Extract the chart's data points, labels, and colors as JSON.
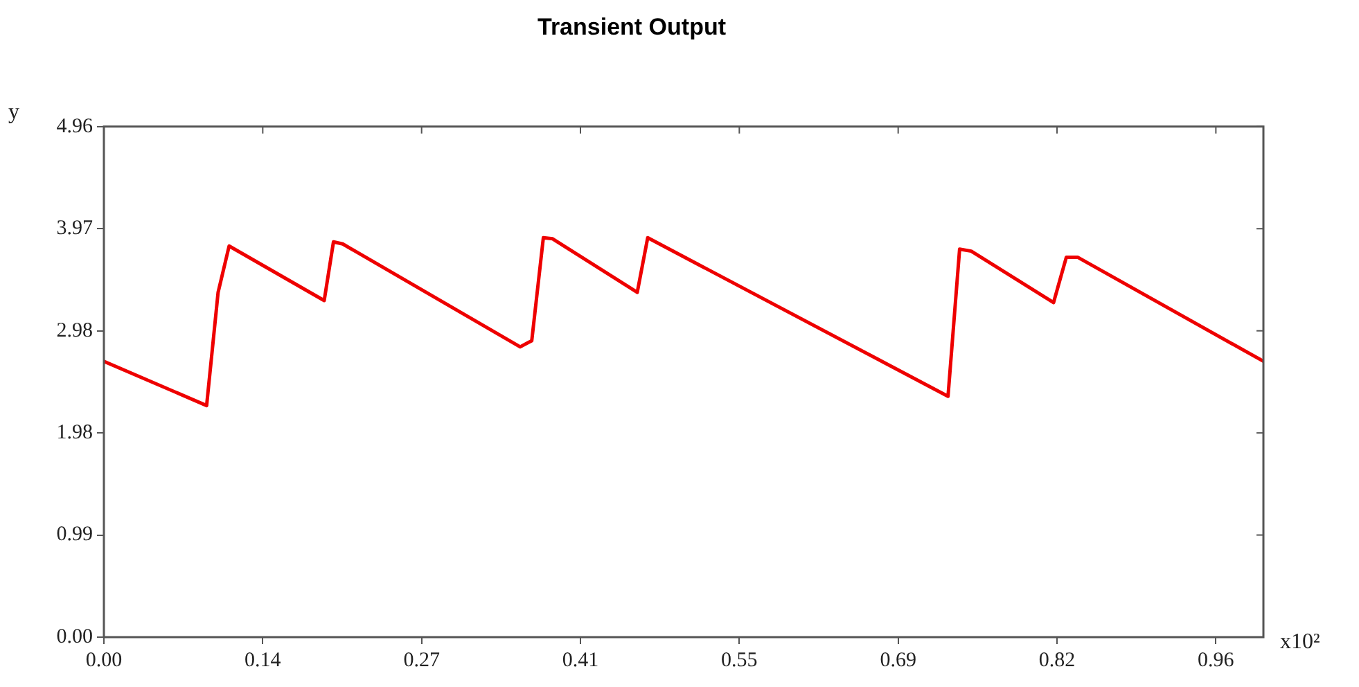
{
  "chart_data": {
    "type": "line",
    "title": "Transient Output",
    "xlabel": "x10²",
    "ylabel": "y",
    "x": [
      0,
      0.0886,
      0.0985,
      0.108,
      0.19,
      0.198,
      0.206,
      0.359,
      0.369,
      0.379,
      0.387,
      0.46,
      0.469,
      0.728,
      0.738,
      0.748,
      0.819,
      0.83,
      0.84,
      1.0
    ],
    "series": [
      {
        "color": "#ee0000",
        "values": [
          2.68,
          2.25,
          3.35,
          3.8,
          3.27,
          3.84,
          3.82,
          2.82,
          2.88,
          3.88,
          3.87,
          3.35,
          3.88,
          2.34,
          3.77,
          3.75,
          3.25,
          3.69,
          3.69,
          2.68
        ]
      }
    ],
    "xlim": [
      0,
      1.0
    ],
    "ylim": [
      0,
      4.96
    ],
    "xticks": [
      {
        "value": 0,
        "label": "0.00"
      },
      {
        "value": 0.137,
        "label": "0.14"
      },
      {
        "value": 0.274,
        "label": "0.27"
      },
      {
        "value": 0.411,
        "label": "0.41"
      },
      {
        "value": 0.548,
        "label": "0.55"
      },
      {
        "value": 0.685,
        "label": "0.69"
      },
      {
        "value": 0.822,
        "label": "0.82"
      },
      {
        "value": 0.959,
        "label": "0.96"
      }
    ],
    "yticks": [
      {
        "value": 0,
        "label": "0.00"
      },
      {
        "value": 0.992,
        "label": "0.99"
      },
      {
        "value": 1.984,
        "label": "1.98"
      },
      {
        "value": 2.976,
        "label": "2.98"
      },
      {
        "value": 3.968,
        "label": "3.97"
      },
      {
        "value": 4.96,
        "label": "4.96"
      }
    ],
    "grid": false,
    "legend": false,
    "marker": "none",
    "line_style": "solid"
  }
}
